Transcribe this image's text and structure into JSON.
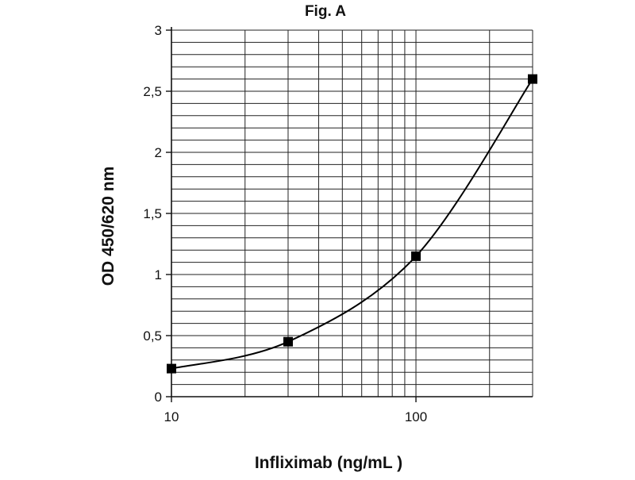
{
  "chart_data": {
    "type": "line",
    "title": "Fig. A",
    "xlabel": "Infliximab (ng/mL )",
    "ylabel": "OD 450/620 nm",
    "x_scale": "log",
    "xlim": [
      10,
      300
    ],
    "ylim": [
      0,
      3
    ],
    "x_ticks": [
      10,
      100
    ],
    "x_tick_labels": [
      "10",
      "100"
    ],
    "y_ticks": [
      0,
      0.5,
      1,
      1.5,
      2,
      2.5,
      3
    ],
    "y_tick_labels": [
      "0",
      "0,5",
      "1",
      "1,5",
      "2",
      "2,5",
      "3"
    ],
    "y_minor_step": 0.1,
    "grid": true,
    "legend": "none",
    "series": [
      {
        "x": [
          10,
          30,
          100,
          300
        ],
        "y": [
          0.23,
          0.45,
          1.15,
          2.6
        ],
        "marker": "square",
        "color": "#000000"
      }
    ]
  }
}
